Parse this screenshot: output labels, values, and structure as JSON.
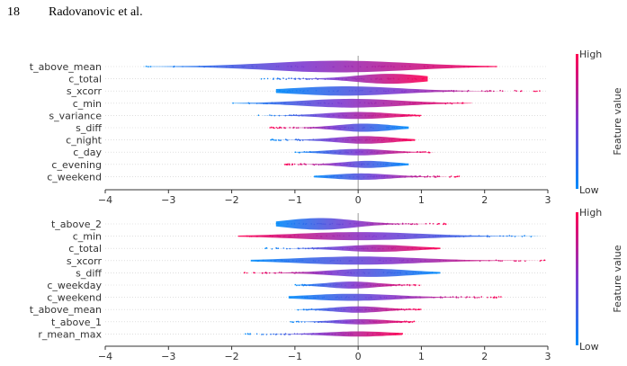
{
  "page": {
    "number": "18",
    "running_head": "Radovanovic et al."
  },
  "chart_data": [
    {
      "type": "violin",
      "features": [
        "t_above_mean",
        "c_total",
        "s_xcorr",
        "c_min",
        "s_variance",
        "s_diff",
        "c_night",
        "c_day",
        "c_evening",
        "c_weekend"
      ],
      "xlim": [
        -4,
        3
      ],
      "xticks": [
        -4,
        -3,
        -2,
        -1,
        0,
        1,
        2,
        3
      ],
      "violins": [
        {
          "feature": "t_above_mean",
          "range": [
            -3.4,
            2.2
          ],
          "center": -0.3,
          "width": 1.0,
          "low_side": "left"
        },
        {
          "feature": "c_total",
          "range": [
            -1.6,
            1.1
          ],
          "center": 0.5,
          "width": 0.85,
          "low_side": "left"
        },
        {
          "feature": "s_xcorr",
          "range": [
            -1.3,
            2.9
          ],
          "center": -0.2,
          "width": 0.8,
          "low_side": "left"
        },
        {
          "feature": "c_min",
          "range": [
            -2.0,
            1.8
          ],
          "center": -0.1,
          "width": 0.75,
          "low_side": "left"
        },
        {
          "feature": "s_variance",
          "range": [
            -1.6,
            1.0
          ],
          "center": 0.0,
          "width": 0.6,
          "low_side": "left"
        },
        {
          "feature": "s_diff",
          "range": [
            -1.4,
            0.8
          ],
          "center": 0.1,
          "width": 0.7,
          "low_side": "right"
        },
        {
          "feature": "c_night",
          "range": [
            -1.4,
            0.9
          ],
          "center": 0.1,
          "width": 0.65,
          "low_side": "left"
        },
        {
          "feature": "c_day",
          "range": [
            -1.0,
            1.2
          ],
          "center": 0.0,
          "width": 0.55,
          "low_side": "left"
        },
        {
          "feature": "c_evening",
          "range": [
            -1.2,
            0.8
          ],
          "center": 0.15,
          "width": 0.6,
          "low_side": "right"
        },
        {
          "feature": "c_weekend",
          "range": [
            -0.7,
            1.6
          ],
          "center": 0.05,
          "width": 0.55,
          "low_side": "left"
        }
      ],
      "colorbar": {
        "high_label": "High",
        "low_label": "Low",
        "title": "Feature value"
      }
    },
    {
      "type": "violin",
      "features": [
        "t_above_2",
        "c_min",
        "c_total",
        "s_xcorr",
        "s_diff",
        "c_weekday",
        "c_weekend",
        "t_above_mean",
        "t_above_1",
        "r_mean_max"
      ],
      "xlim": [
        -4,
        3
      ],
      "xticks": [
        -4,
        -3,
        -2,
        -1,
        0,
        1,
        2,
        3
      ],
      "violins": [
        {
          "feature": "t_above_2",
          "range": [
            -1.3,
            1.4
          ],
          "center": -0.6,
          "width": 1.0,
          "low_side": "left"
        },
        {
          "feature": "c_min",
          "range": [
            -1.9,
            2.9
          ],
          "center": 0.0,
          "width": 0.7,
          "low_side": "right"
        },
        {
          "feature": "c_total",
          "range": [
            -1.5,
            1.3
          ],
          "center": 0.3,
          "width": 0.6,
          "low_side": "left"
        },
        {
          "feature": "s_xcorr",
          "range": [
            -1.7,
            3.0
          ],
          "center": 0.0,
          "width": 0.7,
          "low_side": "left"
        },
        {
          "feature": "s_diff",
          "range": [
            -1.8,
            1.3
          ],
          "center": 0.2,
          "width": 0.7,
          "low_side": "right"
        },
        {
          "feature": "c_weekday",
          "range": [
            -1.0,
            1.0
          ],
          "center": -0.1,
          "width": 0.6,
          "low_side": "left"
        },
        {
          "feature": "c_weekend",
          "range": [
            -1.1,
            2.3
          ],
          "center": -0.1,
          "width": 0.6,
          "low_side": "left"
        },
        {
          "feature": "t_above_mean",
          "range": [
            -1.0,
            1.0
          ],
          "center": 0.0,
          "width": 0.55,
          "low_side": "left"
        },
        {
          "feature": "t_above_1",
          "range": [
            -1.1,
            0.9
          ],
          "center": 0.05,
          "width": 0.45,
          "low_side": "left"
        },
        {
          "feature": "r_mean_max",
          "range": [
            -1.8,
            0.7
          ],
          "center": 0.0,
          "width": 0.45,
          "low_side": "left"
        }
      ],
      "colorbar": {
        "high_label": "High",
        "low_label": "Low",
        "title": "Feature value"
      }
    }
  ],
  "colors": {
    "high": "#ff0052",
    "low": "#008bfb",
    "mid": "#7e3bd0",
    "zero_line": "#999999",
    "grid": "#cccccc"
  }
}
